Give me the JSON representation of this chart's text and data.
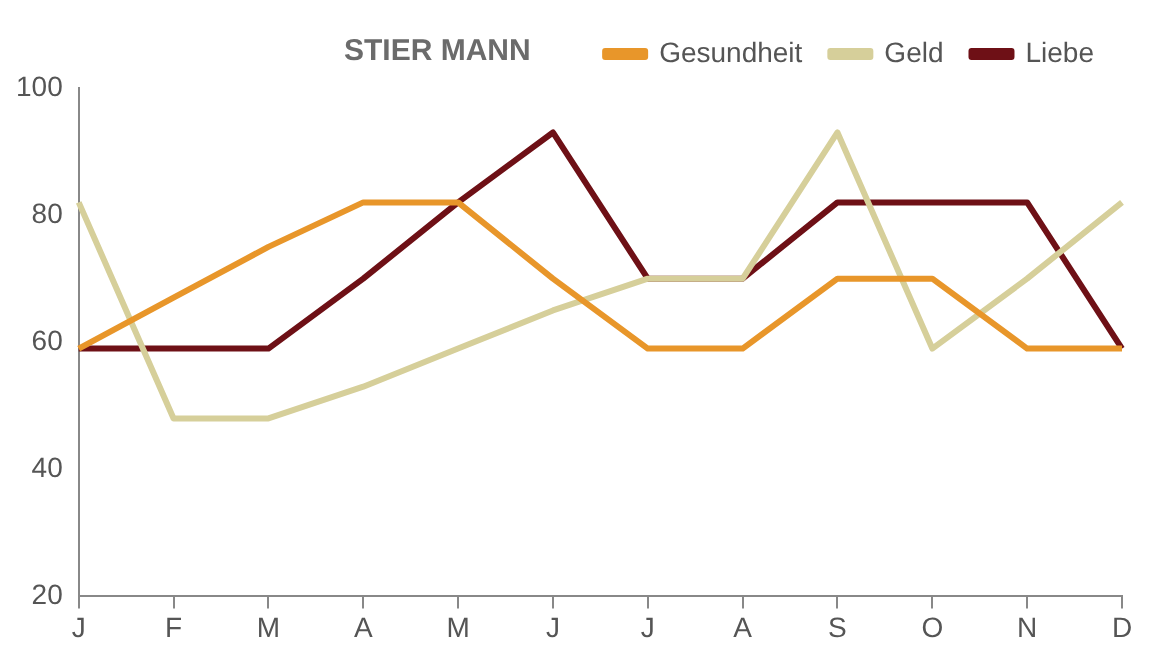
{
  "chart_data": {
    "type": "line",
    "title": "STIER MANN",
    "categories": [
      "J",
      "F",
      "M",
      "A",
      "M",
      "J",
      "J",
      "A",
      "S",
      "O",
      "N",
      "D"
    ],
    "series": [
      {
        "name": "Gesundheit",
        "color": "#e8962a",
        "values": [
          59,
          67,
          75,
          82,
          82,
          70,
          59,
          59,
          70,
          70,
          59,
          59
        ]
      },
      {
        "name": "Geld",
        "color": "#d6cf9a",
        "values": [
          82,
          48,
          48,
          53,
          59,
          65,
          70,
          70,
          93,
          59,
          70,
          82
        ]
      },
      {
        "name": "Liebe",
        "color": "#6e1016",
        "values": [
          59,
          59,
          59,
          70,
          82,
          93,
          70,
          70,
          82,
          82,
          82,
          59
        ]
      }
    ],
    "ylim": [
      20,
      100
    ],
    "yticks": [
      20,
      40,
      60,
      80,
      100
    ],
    "grid": false,
    "legend": "top right",
    "marker": "none",
    "line_style": "solid"
  }
}
